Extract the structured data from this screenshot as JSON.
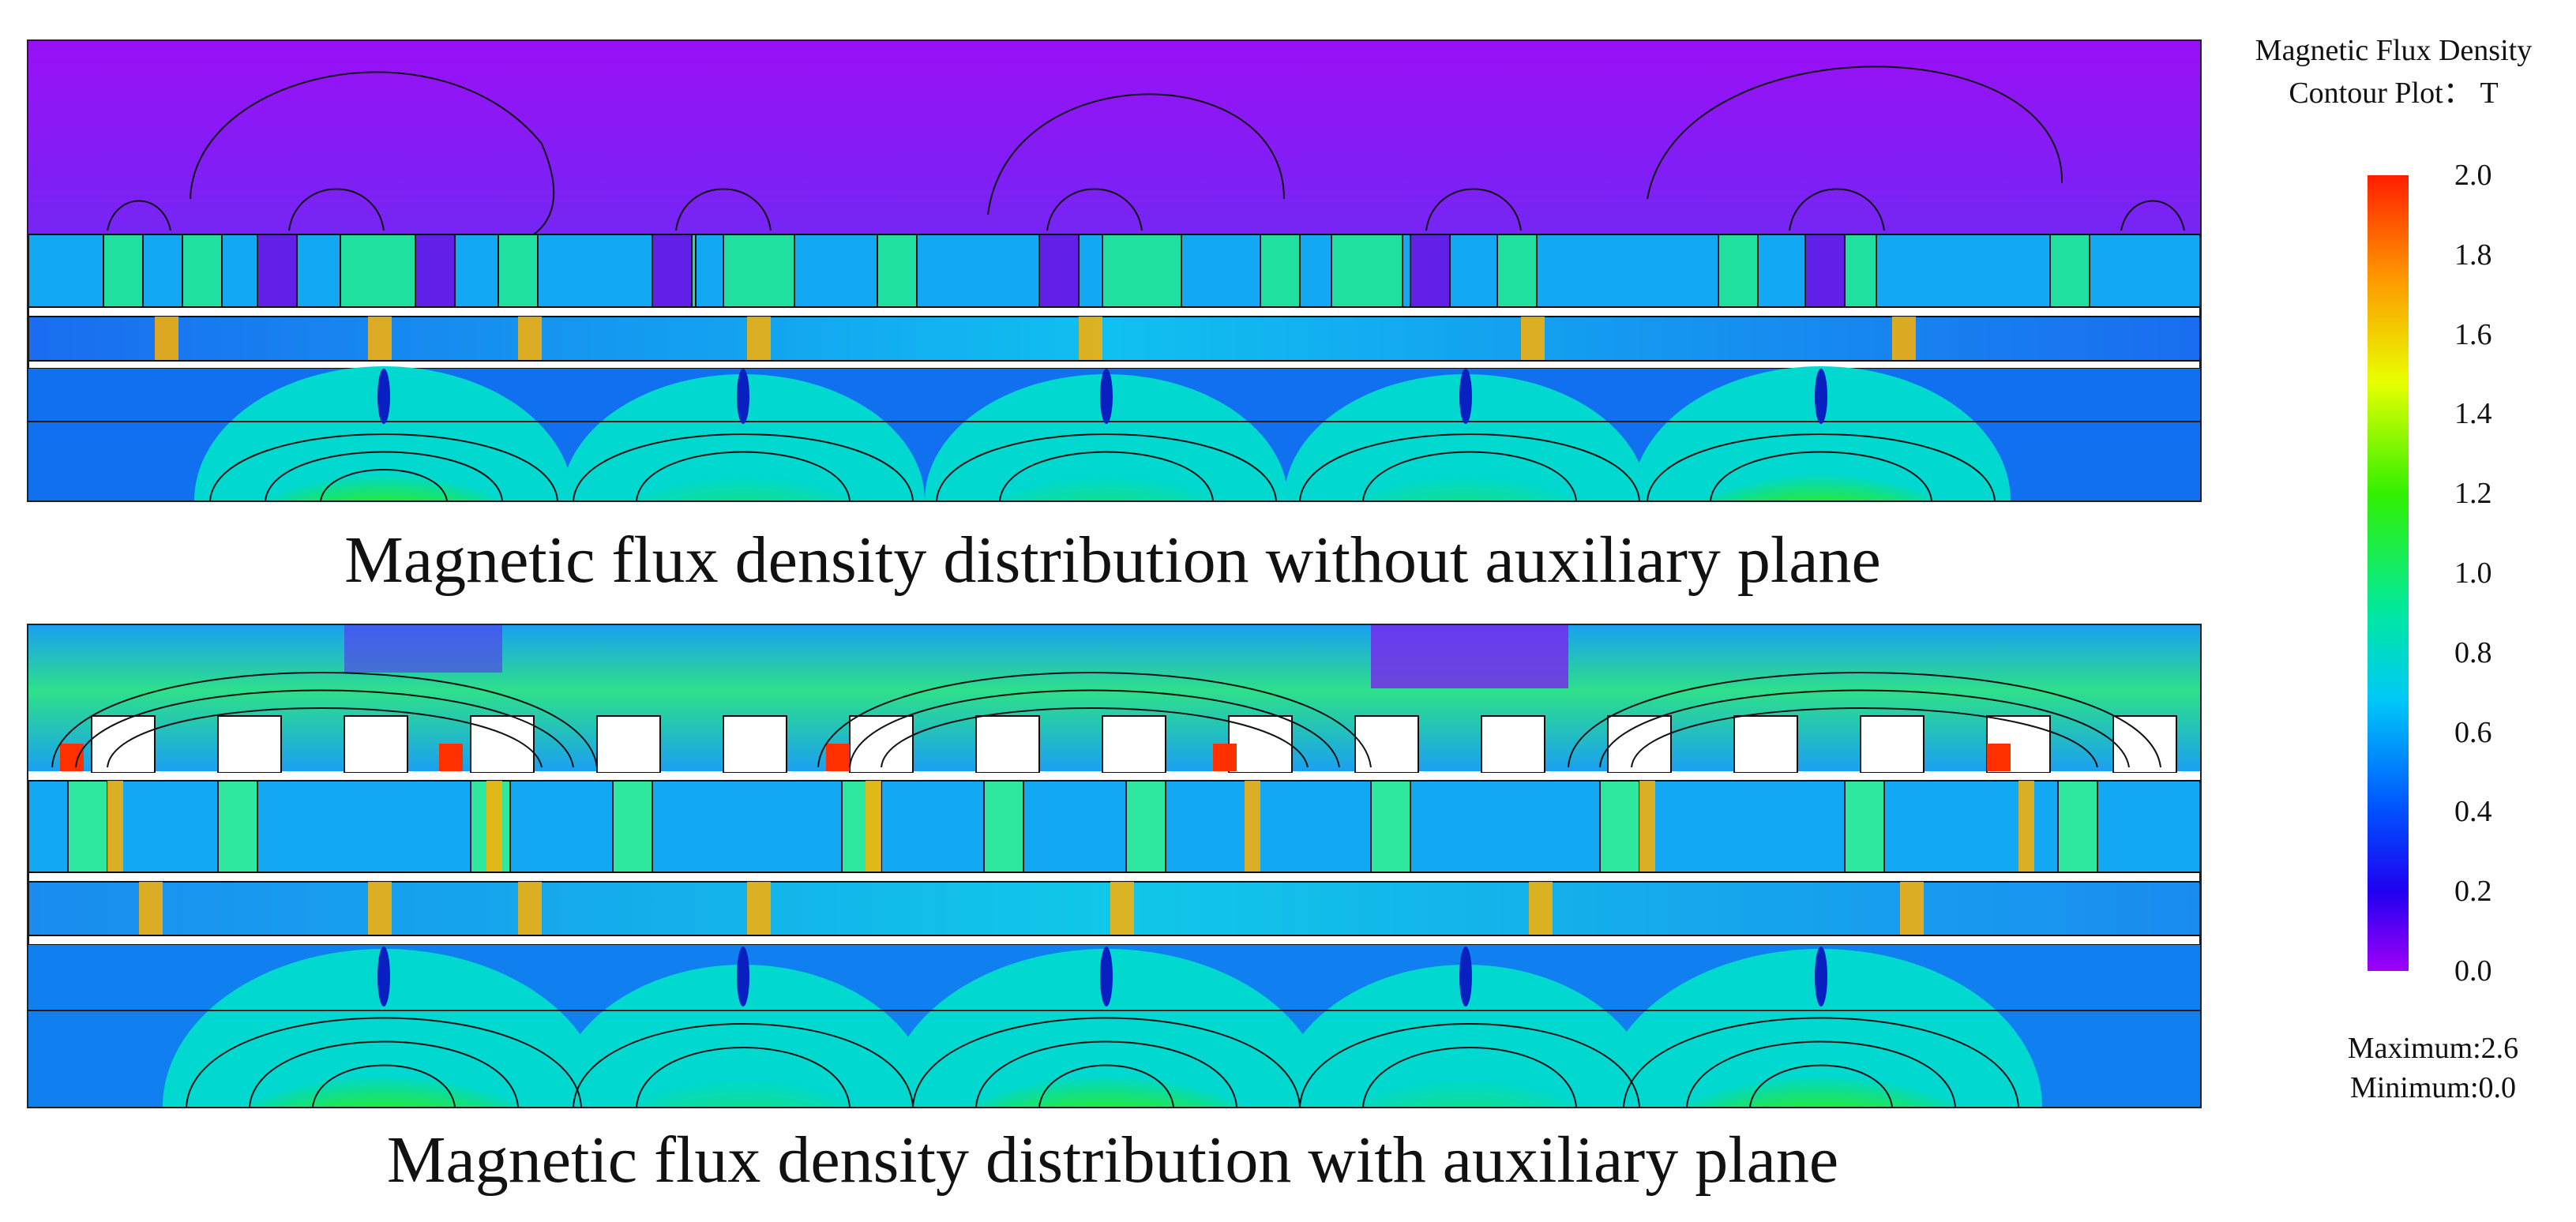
{
  "captions": {
    "top": "Magnetic flux density distribution without auxiliary plane",
    "bottom": "Magnetic flux density distribution with auxiliary plane"
  },
  "colorbar": {
    "title_line1": "Magnetic Flux Density",
    "title_line2": "Contour Plot： T",
    "ticks": [
      "2.0",
      "1.8",
      "1.6",
      "1.4",
      "1.2",
      "1.0",
      "0.8",
      "0.6",
      "0.4",
      "0.2",
      "0.0"
    ],
    "colors": {
      "max": "#ff1e00",
      "high": "#ff9000",
      "mid_high": "#e8ff00",
      "mid": "#32f000",
      "mid_low": "#00c8f8",
      "low": "#0050ff",
      "min": "#a000f8"
    }
  },
  "stats": {
    "maximum": "Maximum:2.6",
    "minimum": "Minimum:0.0"
  }
}
